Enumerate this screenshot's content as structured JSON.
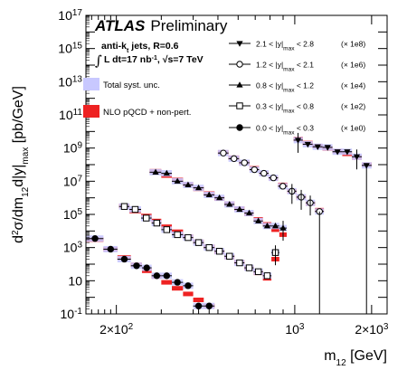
{
  "chart_data": {
    "type": "scatter",
    "title": "",
    "header": {
      "brand": "ATLAS",
      "tag": "Preliminary"
    },
    "info": [
      "anti-k",
      "t",
      " jets, R=0.6",
      "L dt=17 nb",
      "-1",
      ", ",
      "s=7 TeV"
    ],
    "xlabel": "m",
    "xlabel_sub": "12",
    "xlabel_unit": " [GeV]",
    "ylabel": {
      "p1": "d",
      "p1_sup": "2",
      "p2": "σ/dm",
      "p2_sub": "12",
      "p3": "d|y|",
      "p3_sub": "max",
      "p4": " [pb/GeV]"
    },
    "xscale": "log",
    "yscale": "log",
    "xlim": [
      152,
      2300
    ],
    "ylim": [
      0.1,
      1e+17
    ],
    "x_tick_labels": [
      {
        "value": 200,
        "mant": "2×10",
        "exp": "2"
      },
      {
        "value": 1000,
        "mant": "10",
        "exp": "3"
      },
      {
        "value": 2000,
        "mant": "2×10",
        "exp": "3"
      }
    ],
    "y_tick_labels": [
      {
        "value": 0.1,
        "mant": "10",
        "exp": "-1"
      },
      {
        "value": 10,
        "mant": "10",
        "exp": ""
      },
      {
        "value": 1000,
        "mant": "10",
        "exp": "3"
      },
      {
        "value": 100000.0,
        "mant": "10",
        "exp": "5"
      },
      {
        "value": 10000000.0,
        "mant": "10",
        "exp": "7"
      },
      {
        "value": 1000000000.0,
        "mant": "10",
        "exp": "9"
      },
      {
        "value": 100000000000.0,
        "mant": "10",
        "exp": "11"
      },
      {
        "value": 10000000000000.0,
        "mant": "10",
        "exp": "13"
      },
      {
        "value": 1000000000000000.0,
        "mant": "10",
        "exp": "15"
      },
      {
        "value": 1e+17,
        "mant": "10",
        "exp": "17"
      }
    ],
    "legend_placement": "top-right",
    "band_legend": [
      {
        "label": "Total syst. unc.",
        "color": "#c8c8ff"
      },
      {
        "label": "NLO pQCD + non-pert.",
        "color": "#ee2222"
      }
    ],
    "series": [
      {
        "name_pre": "2.1 < |y|",
        "name_sub": "max",
        "name_post": " < 2.8",
        "scale": "(× 1e8)",
        "marker": "triangle-down",
        "points": [
          {
            "x": 1030,
            "y": 3000000000.0,
            "xlo": 990,
            "xhi": 1075
          },
          {
            "x": 1125,
            "y": 1700000000.0,
            "xlo": 1075,
            "xhi": 1175
          },
          {
            "x": 1230,
            "y": 1200000000.0,
            "xlo": 1175,
            "xhi": 1285
          },
          {
            "x": 1345,
            "y": 1100000000.0,
            "xlo": 1285,
            "xhi": 1405
          },
          {
            "x": 1470,
            "y": 600000000.0,
            "xlo": 1405,
            "xhi": 1535
          },
          {
            "x": 1605,
            "y": 600000000.0,
            "xlo": 1535,
            "xhi": 1675
          },
          {
            "x": 1750,
            "y": 300000000.0,
            "xlo": 1675,
            "xhi": 1830
          },
          {
            "x": 1910,
            "y": 90000000.0,
            "xlo": 1830,
            "xhi": 2000
          }
        ],
        "theory": [
          {
            "y": 3500000000.0,
            "xlo": 990,
            "xhi": 1075
          },
          {
            "y": 2000000000.0,
            "xlo": 1075,
            "xhi": 1175
          },
          {
            "y": 1300000000.0,
            "xlo": 1175,
            "xhi": 1285
          },
          {
            "y": 950000000.0,
            "xlo": 1285,
            "xhi": 1405
          },
          {
            "y": 650000000.0,
            "xlo": 1405,
            "xhi": 1535
          },
          {
            "y": 450000000.0,
            "xlo": 1535,
            "xhi": 1675
          },
          {
            "y": 270000000.0,
            "xlo": 1675,
            "xhi": 1830
          },
          {
            "y": 100000000.0,
            "xlo": 1830,
            "xhi": 2000
          }
        ]
      },
      {
        "name_pre": "1.2 < |y|",
        "name_sub": "max",
        "name_post": " < 2.1",
        "scale": "(× 1e6)",
        "marker": "circle-open",
        "points": [
          {
            "x": 525,
            "y": 500000000.0,
            "xlo": 500,
            "xhi": 550
          },
          {
            "x": 578,
            "y": 230000000.0,
            "xlo": 550,
            "xhi": 605
          },
          {
            "x": 635,
            "y": 130000000.0,
            "xlo": 605,
            "xhi": 665
          },
          {
            "x": 695,
            "y": 50000000.0,
            "xlo": 665,
            "xhi": 725
          },
          {
            "x": 757,
            "y": 30000000.0,
            "xlo": 725,
            "xhi": 790
          },
          {
            "x": 825,
            "y": 16000000.0,
            "xlo": 790,
            "xhi": 860
          },
          {
            "x": 898,
            "y": 5000000.0,
            "xlo": 860,
            "xhi": 935
          },
          {
            "x": 975,
            "y": 2500000.0,
            "xlo": 935,
            "xhi": 1015
          },
          {
            "x": 1060,
            "y": 1100000.0,
            "xlo": 1015,
            "xhi": 1105
          },
          {
            "x": 1150,
            "y": 500000.0,
            "xlo": 1105,
            "xhi": 1200
          },
          {
            "x": 1250,
            "y": 150000.0,
            "xlo": 1200,
            "xhi": 1300
          }
        ],
        "theory": [
          {
            "y": 550000000.0,
            "xlo": 500,
            "xhi": 550
          },
          {
            "y": 260000000.0,
            "xlo": 550,
            "xhi": 605
          },
          {
            "y": 130000000.0,
            "xlo": 605,
            "xhi": 665
          },
          {
            "y": 60000000.0,
            "xlo": 665,
            "xhi": 725
          },
          {
            "y": 30000000.0,
            "xlo": 725,
            "xhi": 790
          },
          {
            "y": 15000000.0,
            "xlo": 790,
            "xhi": 860
          },
          {
            "y": 6000000.0,
            "xlo": 860,
            "xhi": 935
          },
          {
            "y": 2500000.0,
            "xlo": 935,
            "xhi": 1015
          },
          {
            "y": 1100000.0,
            "xlo": 1015,
            "xhi": 1105
          },
          {
            "y": 450000.0,
            "xlo": 1105,
            "xhi": 1200
          },
          {
            "y": 180000.0,
            "xlo": 1200,
            "xhi": 1300
          }
        ]
      },
      {
        "name_pre": "0.8 < |y|",
        "name_sub": "max",
        "name_post": " < 1.2",
        "scale": "(× 1e4)",
        "marker": "triangle-up",
        "points": [
          {
            "x": 285,
            "y": 35000000.0,
            "xlo": 270,
            "xhi": 300
          },
          {
            "x": 315,
            "y": 30000000.0,
            "xlo": 300,
            "xhi": 330
          },
          {
            "x": 347,
            "y": 10000000.0,
            "xlo": 330,
            "xhi": 365
          },
          {
            "x": 382,
            "y": 6000000.0,
            "xlo": 365,
            "xhi": 400
          },
          {
            "x": 420,
            "y": 4000000.0,
            "xlo": 400,
            "xhi": 440
          },
          {
            "x": 462,
            "y": 1500000.0,
            "xlo": 440,
            "xhi": 485
          },
          {
            "x": 507,
            "y": 1000000.0,
            "xlo": 485,
            "xhi": 530
          },
          {
            "x": 555,
            "y": 400000.0,
            "xlo": 530,
            "xhi": 580
          },
          {
            "x": 608,
            "y": 200000.0,
            "xlo": 580,
            "xhi": 635
          },
          {
            "x": 663,
            "y": 120000.0,
            "xlo": 635,
            "xhi": 690
          },
          {
            "x": 720,
            "y": 40000.0,
            "xlo": 690,
            "xhi": 750
          },
          {
            "x": 780,
            "y": 20000.0,
            "xlo": 750,
            "xhi": 810
          },
          {
            "x": 840,
            "y": 20000.0,
            "xlo": 810,
            "xhi": 870
          },
          {
            "x": 900,
            "y": 15000.0,
            "xlo": 870,
            "xhi": 930
          }
        ],
        "theory": [
          {
            "y": 40000000.0,
            "xlo": 270,
            "xhi": 300
          },
          {
            "y": 22000000.0,
            "xlo": 300,
            "xhi": 330
          },
          {
            "y": 12000000.0,
            "xlo": 330,
            "xhi": 365
          },
          {
            "y": 6500000.0,
            "xlo": 365,
            "xhi": 400
          },
          {
            "y": 3500000.0,
            "xlo": 400,
            "xhi": 440
          },
          {
            "y": 1800000.0,
            "xlo": 440,
            "xhi": 485
          },
          {
            "y": 900000.0,
            "xlo": 485,
            "xhi": 530
          },
          {
            "y": 450000.0,
            "xlo": 530,
            "xhi": 580
          },
          {
            "y": 220000.0,
            "xlo": 580,
            "xhi": 635
          },
          {
            "y": 110000.0,
            "xlo": 635,
            "xhi": 690
          },
          {
            "y": 50000.0,
            "xlo": 690,
            "xhi": 750
          },
          {
            "y": 25000.0,
            "xlo": 750,
            "xhi": 810
          },
          {
            "y": 12000.0,
            "xlo": 810,
            "xhi": 870
          },
          {
            "y": 6000.0,
            "xlo": 870,
            "xhi": 930
          }
        ]
      },
      {
        "name_pre": "0.3 < |y|",
        "name_sub": "max",
        "name_post": " < 0.8",
        "scale": "(× 1e2)",
        "marker": "square-open",
        "points": [
          {
            "x": 215,
            "y": 300000.0,
            "xlo": 205,
            "xhi": 225
          },
          {
            "x": 237,
            "y": 200000.0,
            "xlo": 225,
            "xhi": 250
          },
          {
            "x": 262,
            "y": 60000.0,
            "xlo": 250,
            "xhi": 275
          },
          {
            "x": 288,
            "y": 30000.0,
            "xlo": 275,
            "xhi": 300
          },
          {
            "x": 315,
            "y": 12000.0,
            "xlo": 300,
            "xhi": 330
          },
          {
            "x": 347,
            "y": 6000.0,
            "xlo": 330,
            "xhi": 365
          },
          {
            "x": 382,
            "y": 4000.0,
            "xlo": 365,
            "xhi": 400
          },
          {
            "x": 420,
            "y": 2000.0,
            "xlo": 400,
            "xhi": 440
          },
          {
            "x": 462,
            "y": 1000.0,
            "xlo": 440,
            "xhi": 485
          },
          {
            "x": 507,
            "y": 600.0,
            "xlo": 485,
            "xhi": 530
          },
          {
            "x": 555,
            "y": 300.0,
            "xlo": 530,
            "xhi": 580
          },
          {
            "x": 608,
            "y": 120.0,
            "xlo": 580,
            "xhi": 635
          },
          {
            "x": 663,
            "y": 60,
            "xlo": 635,
            "xhi": 690
          },
          {
            "x": 720,
            "y": 35,
            "xlo": 690,
            "xhi": 750
          },
          {
            "x": 780,
            "y": 20,
            "xlo": 750,
            "xhi": 810
          },
          {
            "x": 840,
            "y": 500.0,
            "xlo": 810,
            "xhi": 870
          }
        ],
        "theory": [
          {
            "y": 320000.0,
            "xlo": 205,
            "xhi": 225
          },
          {
            "y": 160000.0,
            "xlo": 225,
            "xhi": 250
          },
          {
            "y": 80000.0,
            "xlo": 250,
            "xhi": 275
          },
          {
            "y": 40000.0,
            "xlo": 275,
            "xhi": 300
          },
          {
            "y": 18000.0,
            "xlo": 300,
            "xhi": 330
          },
          {
            "y": 9000.0,
            "xlo": 330,
            "xhi": 365
          },
          {
            "y": 4500.0,
            "xlo": 365,
            "xhi": 400
          },
          {
            "y": 2200.0,
            "xlo": 400,
            "xhi": 440
          },
          {
            "y": 1100.0,
            "xlo": 440,
            "xhi": 485
          },
          {
            "y": 550.0,
            "xlo": 485,
            "xhi": 530
          },
          {
            "y": 270.0,
            "xlo": 530,
            "xhi": 580
          },
          {
            "y": 130.0,
            "xlo": 580,
            "xhi": 635
          },
          {
            "y": 60,
            "xlo": 635,
            "xhi": 690
          },
          {
            "y": 30,
            "xlo": 690,
            "xhi": 750
          },
          {
            "y": 14,
            "xlo": 750,
            "xhi": 810
          },
          {
            "y": 200.0,
            "xlo": 810,
            "xhi": 870
          }
        ]
      },
      {
        "name_pre": "0.0 < |y|",
        "name_sub": "max",
        "name_post": " < 0.3",
        "scale": "(× 1e0)",
        "marker": "circle-filled",
        "points": [
          {
            "x": 165,
            "y": 3500.0,
            "xlo": 152,
            "xhi": 178
          },
          {
            "x": 190,
            "y": 800.0,
            "xlo": 178,
            "xhi": 202
          },
          {
            "x": 215,
            "y": 200.0,
            "xlo": 202,
            "xhi": 228
          },
          {
            "x": 240,
            "y": 80,
            "xlo": 228,
            "xhi": 252
          },
          {
            "x": 263,
            "y": 60,
            "xlo": 252,
            "xhi": 275
          },
          {
            "x": 288,
            "y": 20,
            "xlo": 275,
            "xhi": 300
          },
          {
            "x": 315,
            "y": 20,
            "xlo": 300,
            "xhi": 330
          },
          {
            "x": 347,
            "y": 8,
            "xlo": 330,
            "xhi": 365
          },
          {
            "x": 382,
            "y": 5,
            "xlo": 365,
            "xhi": 400
          },
          {
            "x": 420,
            "y": 0.3,
            "xlo": 400,
            "xhi": 440
          },
          {
            "x": 462,
            "y": 0.3,
            "xlo": 440,
            "xhi": 485
          }
        ],
        "theory": [
          {
            "y": 3000.0,
            "xlo": 152,
            "xhi": 178
          },
          {
            "y": 800.0,
            "xlo": 178,
            "xhi": 202
          },
          {
            "y": 250.0,
            "xlo": 202,
            "xhi": 228
          },
          {
            "y": 90,
            "xlo": 228,
            "xhi": 252
          },
          {
            "y": 40,
            "xlo": 252,
            "xhi": 275
          },
          {
            "y": 18,
            "xlo": 275,
            "xhi": 300
          },
          {
            "y": 8,
            "xlo": 300,
            "xhi": 330
          },
          {
            "y": 3.5,
            "xlo": 330,
            "xhi": 365
          },
          {
            "y": 1.6,
            "xlo": 365,
            "xhi": 400
          },
          {
            "y": 0.7,
            "xlo": 400,
            "xhi": 440
          },
          {
            "y": 0.3,
            "xlo": 440,
            "xhi": 485
          }
        ]
      }
    ]
  }
}
